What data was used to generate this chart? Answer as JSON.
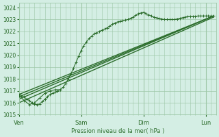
{
  "bg_color": "#d4eee4",
  "grid_color": "#9ec8a8",
  "line_color": "#2d6e2d",
  "ylabel": "Pression niveau de la mer( hPa )",
  "ylim": [
    1015.0,
    1024.4
  ],
  "yticks": [
    1015,
    1016,
    1017,
    1018,
    1019,
    1020,
    1021,
    1022,
    1023,
    1024
  ],
  "day_labels": [
    "Ven",
    "Sam",
    "Dim",
    "Lun"
  ],
  "day_positions": [
    0,
    72,
    144,
    216
  ],
  "xlim": [
    0,
    228
  ],
  "series": [
    {
      "x": [
        0,
        3,
        6,
        9,
        12,
        15,
        18,
        21,
        24,
        27,
        30,
        33,
        36,
        39,
        42,
        45,
        48,
        51,
        54,
        57,
        60,
        63,
        66,
        69,
        72,
        75,
        78,
        81,
        84,
        87,
        90,
        93,
        96,
        99,
        102,
        105,
        108,
        111,
        114,
        117,
        120,
        123,
        126,
        129,
        132,
        135,
        138,
        141,
        144,
        147,
        150,
        153,
        156,
        159,
        162,
        165,
        168,
        171,
        174,
        177,
        180,
        183,
        186,
        189,
        192,
        195,
        198,
        201,
        204,
        207,
        210,
        213,
        216,
        219,
        222,
        225
      ],
      "y": [
        1016.7,
        1016.6,
        1016.5,
        1016.3,
        1016.2,
        1016.0,
        1015.9,
        1015.85,
        1015.9,
        1016.1,
        1016.3,
        1016.5,
        1016.7,
        1016.8,
        1016.9,
        1017.0,
        1017.1,
        1017.3,
        1017.6,
        1018.0,
        1018.4,
        1018.9,
        1019.4,
        1019.9,
        1020.4,
        1020.8,
        1021.1,
        1021.4,
        1021.6,
        1021.8,
        1021.9,
        1022.0,
        1022.1,
        1022.2,
        1022.3,
        1022.45,
        1022.6,
        1022.7,
        1022.8,
        1022.85,
        1022.9,
        1022.95,
        1023.0,
        1023.1,
        1023.2,
        1023.35,
        1023.5,
        1023.55,
        1023.6,
        1023.5,
        1023.4,
        1023.3,
        1023.2,
        1023.15,
        1023.1,
        1023.05,
        1023.0,
        1023.0,
        1023.0,
        1023.0,
        1023.0,
        1023.05,
        1023.1,
        1023.15,
        1023.2,
        1023.25,
        1023.25,
        1023.25,
        1023.25,
        1023.3,
        1023.3,
        1023.3,
        1023.3,
        1023.3,
        1023.3,
        1023.3
      ],
      "marker": "+",
      "linewidth": 0.8,
      "markersize": 2.5,
      "zorder": 4
    },
    {
      "x": [
        0,
        225
      ],
      "y": [
        1016.7,
        1023.3
      ],
      "marker": null,
      "linewidth": 1.0,
      "zorder": 2
    },
    {
      "x": [
        0,
        225
      ],
      "y": [
        1016.5,
        1023.3
      ],
      "marker": null,
      "linewidth": 1.0,
      "zorder": 2
    },
    {
      "x": [
        0,
        225
      ],
      "y": [
        1016.3,
        1023.3
      ],
      "marker": null,
      "linewidth": 1.0,
      "zorder": 2
    },
    {
      "x": [
        0,
        225
      ],
      "y": [
        1016.0,
        1023.2
      ],
      "marker": null,
      "linewidth": 1.0,
      "zorder": 2
    },
    {
      "x": [
        0,
        6,
        12,
        18,
        24,
        30,
        36,
        42,
        48
      ],
      "y": [
        1016.6,
        1016.2,
        1015.85,
        1016.0,
        1016.4,
        1016.8,
        1017.0,
        1017.1,
        1017.1
      ],
      "marker": "+",
      "linewidth": 0.8,
      "markersize": 2.5,
      "zorder": 4
    }
  ]
}
